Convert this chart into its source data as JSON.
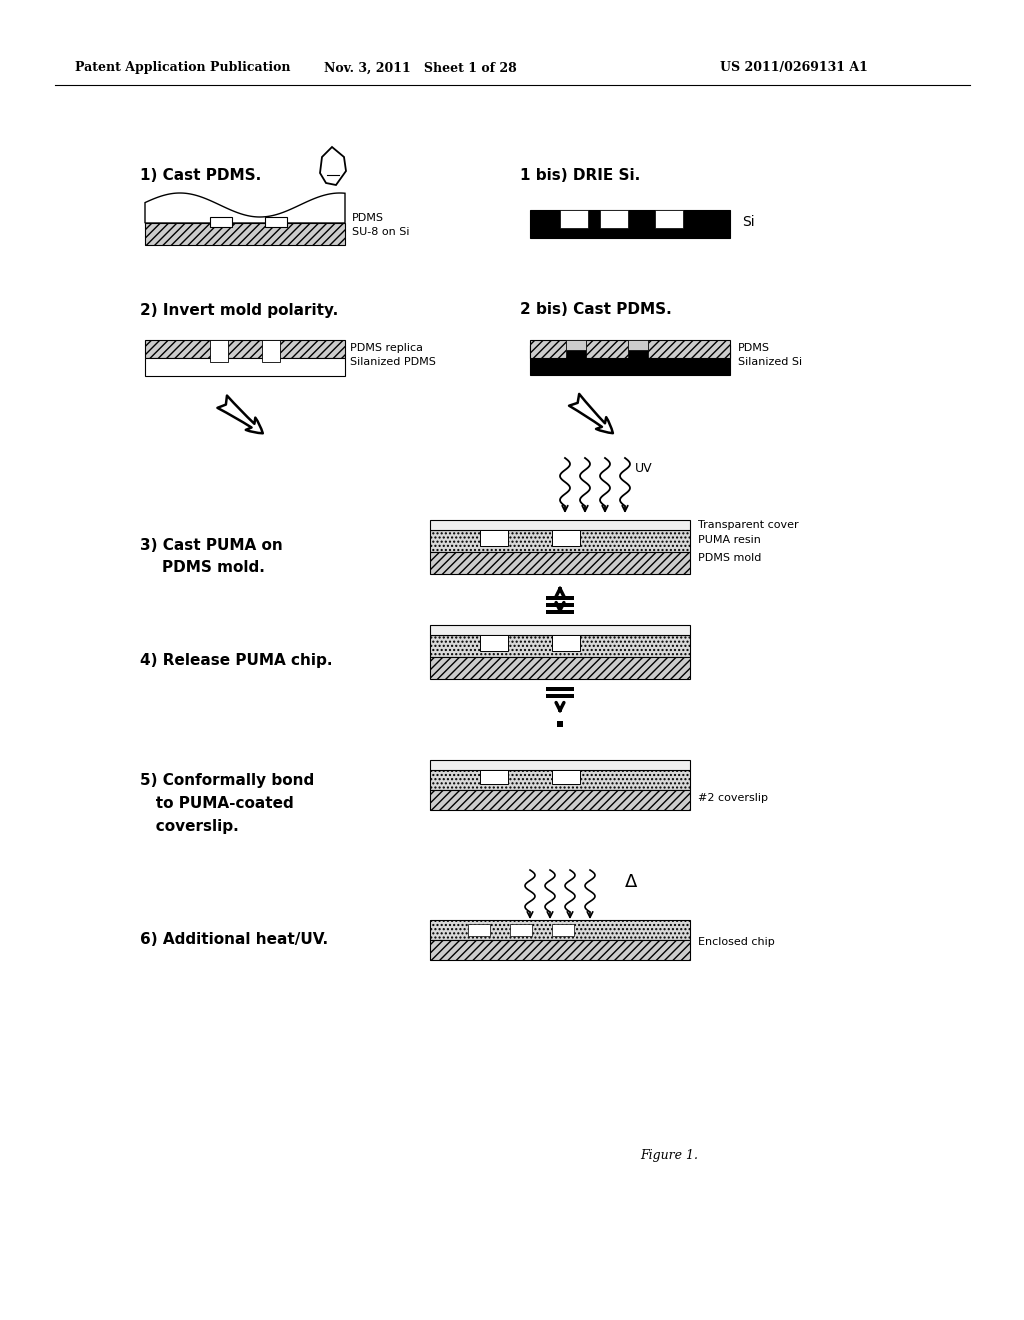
{
  "header_left": "Patent Application Publication",
  "header_mid": "Nov. 3, 2011   Sheet 1 of 28",
  "header_right": "US 2011/0269131 A1",
  "figure_caption": "Figure 1.",
  "bg_color": "#ffffff"
}
